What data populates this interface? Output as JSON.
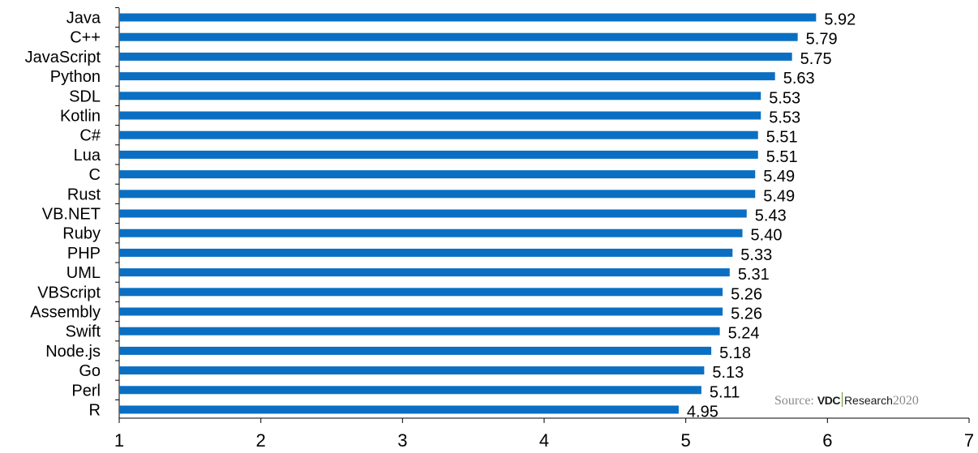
{
  "chart_data": {
    "type": "bar",
    "orientation": "horizontal",
    "categories": [
      "Java",
      "C++",
      "JavaScript",
      "Python",
      "SDL",
      "Kotlin",
      "C#",
      "Lua",
      "C",
      "Rust",
      "VB.NET",
      "Ruby",
      "PHP",
      "UML",
      "VBScript",
      "Assembly",
      "Swift",
      "Node.js",
      "Go",
      "Perl",
      "R"
    ],
    "values": [
      5.92,
      5.79,
      5.75,
      5.63,
      5.53,
      5.53,
      5.51,
      5.51,
      5.49,
      5.49,
      5.43,
      5.4,
      5.33,
      5.31,
      5.26,
      5.26,
      5.24,
      5.18,
      5.13,
      5.11,
      4.95
    ],
    "value_labels": [
      "5.92",
      "5.79",
      "5.75",
      "5.63",
      "5.53",
      "5.53",
      "5.51",
      "5.51",
      "5.49",
      "5.49",
      "5.43",
      "5.40",
      "5.33",
      "5.31",
      "5.26",
      "5.26",
      "5.24",
      "5.18",
      "5.13",
      "5.11",
      "4.95"
    ],
    "xlim": [
      1,
      7
    ],
    "xticks": [
      "1",
      "2",
      "3",
      "4",
      "5",
      "6",
      "7"
    ],
    "bar_color": "#0a6fc2",
    "grid": false,
    "title": "",
    "xlabel": "",
    "ylabel": ""
  },
  "source": {
    "prefix": "Source: ",
    "brand": "VDC",
    "brand_suffix": "Research",
    "year": "2020"
  }
}
